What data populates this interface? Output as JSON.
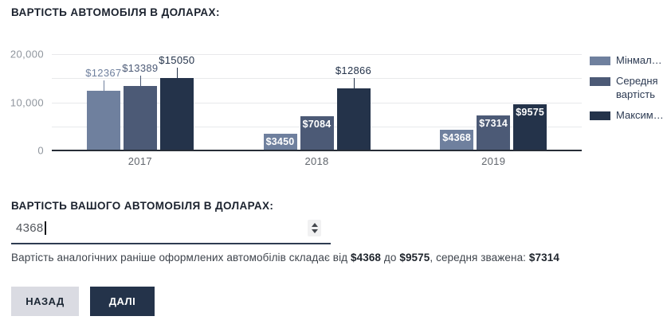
{
  "chart_data": {
    "type": "bar",
    "title": "ВАРТІСТЬ АВТОМОБІЛЯ В ДОЛАРАХ:",
    "categories": [
      "2017",
      "2018",
      "2019"
    ],
    "series": [
      {
        "name": "Мінмал…",
        "color": "#6f809e",
        "values": [
          12367,
          3450,
          4368
        ]
      },
      {
        "name": "Середня вартість",
        "color": "#4c5a76",
        "values": [
          13389,
          7084,
          7314
        ]
      },
      {
        "name": "Максим…",
        "color": "#24334a",
        "values": [
          15050,
          12866,
          9575
        ]
      }
    ],
    "value_prefix": "$",
    "ylim": [
      0,
      20000
    ],
    "y_ticks": [
      {
        "value": 0,
        "label": "0"
      },
      {
        "value": 10000,
        "label": "10,000"
      },
      {
        "value": 20000,
        "label": "20,000"
      }
    ],
    "gridline_step": 5000,
    "grid": true,
    "legend_position": "right"
  },
  "value_section": {
    "title": "ВАРТІСТЬ ВАШОГО АВТОМОБІЛЯ В ДОЛАРАХ:",
    "input_value": "4368",
    "helper_prefix": "Вартість аналогічних раніше оформлених автомобілів складає від ",
    "helper_min": "$4368",
    "helper_between": " до ",
    "helper_max": "$9575",
    "helper_avg_label": ", середня зважена: ",
    "helper_avg": "$7314"
  },
  "buttons": {
    "back": "НАЗАД",
    "next": "ДАЛІ"
  },
  "colors": {
    "bar_min": "#6f809e",
    "bar_avg": "#4c5a76",
    "bar_max": "#24334a",
    "axis_line": "#272d37",
    "gridline": "#e8e9eb",
    "back_button_bg": "#dadbe2",
    "next_button_bg": "#24334a"
  }
}
